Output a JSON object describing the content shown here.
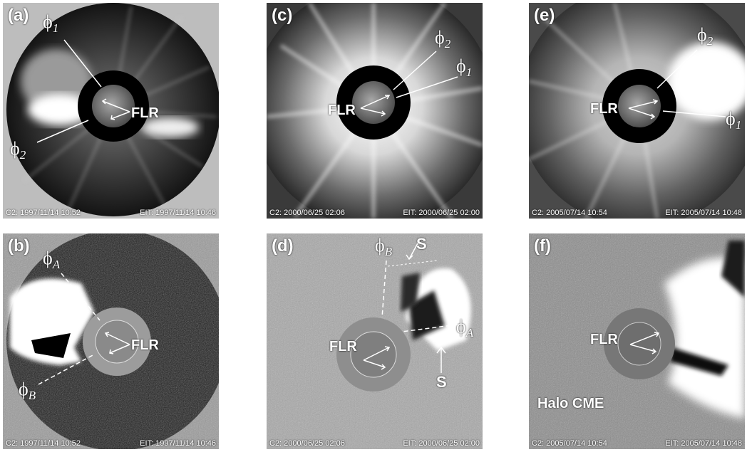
{
  "panels": {
    "a": {
      "label": "(a)",
      "c2_time": "C2: 1997/11/14 10:52",
      "eit_time": "EIT: 1997/11/14 10:46",
      "ann_1": "1",
      "ann_2": "2",
      "flr": "FLR"
    },
    "b": {
      "label": "(b)",
      "c2_time": "C2: 1997/11/14 10:52",
      "eit_time": "EIT: 1997/11/14 10:46",
      "ann_a": "A",
      "ann_b": "B",
      "flr": "FLR"
    },
    "c": {
      "label": "(c)",
      "c2_time": "C2: 2000/06/25 02:06",
      "eit_time": "EIT: 2000/06/25 02:00",
      "ann_1": "1",
      "ann_2": "2",
      "flr": "FLR"
    },
    "d": {
      "label": "(d)",
      "c2_time": "C2: 2000/06/25 02:06",
      "eit_time": "EIT: 2000/06/25 02:00",
      "ann_a": "A",
      "ann_b": "B",
      "flr": "FLR",
      "s_top": "S",
      "s_bottom": "S"
    },
    "e": {
      "label": "(e)",
      "c2_time": "C2: 2005/07/14 10:54",
      "eit_time": "EIT: 2005/07/14 10:48",
      "ann_1": "1",
      "ann_2": "2",
      "flr": "FLR"
    },
    "f": {
      "label": "(f)",
      "c2_time": "C2: 2005/07/14 10:54",
      "eit_time": "EIT: 2005/07/14 10:48",
      "flr": "FLR",
      "halo": "Halo CME"
    }
  },
  "symbols": {
    "phi": "ϕ"
  },
  "colors": {
    "background": "#bdbdbd",
    "occulter": "#000000",
    "diff_occulter": "#8a8a8a",
    "annotation": "#ffffff"
  }
}
